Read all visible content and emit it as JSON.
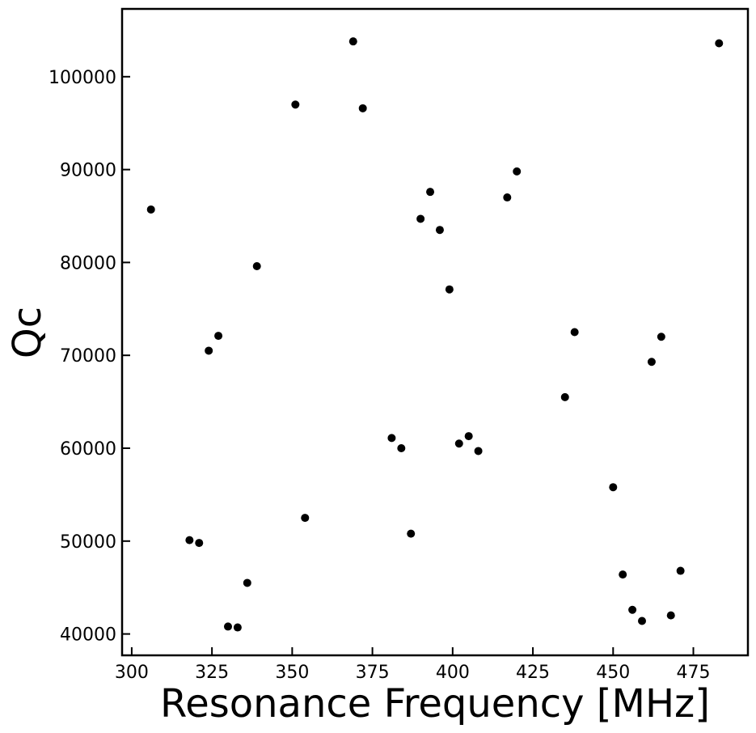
{
  "chart_data": {
    "type": "scatter",
    "title": "",
    "xlabel": "Resonance Frequency [MHz]",
    "ylabel": "Qc",
    "xlim": [
      297,
      492
    ],
    "ylim": [
      37700,
      107300
    ],
    "x_ticks": [
      300,
      325,
      350,
      375,
      400,
      425,
      450,
      475
    ],
    "y_ticks": [
      40000,
      50000,
      60000,
      70000,
      80000,
      90000,
      100000
    ],
    "grid": false,
    "legend": "none",
    "marker_color": "#000000",
    "points": [
      {
        "x": 306,
        "y": 85700
      },
      {
        "x": 318,
        "y": 50100
      },
      {
        "x": 321,
        "y": 49800
      },
      {
        "x": 324,
        "y": 70500
      },
      {
        "x": 327,
        "y": 72100
      },
      {
        "x": 330,
        "y": 40800
      },
      {
        "x": 333,
        "y": 40700
      },
      {
        "x": 336,
        "y": 45500
      },
      {
        "x": 339,
        "y": 79600
      },
      {
        "x": 351,
        "y": 97000
      },
      {
        "x": 354,
        "y": 52500
      },
      {
        "x": 369,
        "y": 103800
      },
      {
        "x": 372,
        "y": 96600
      },
      {
        "x": 381,
        "y": 61100
      },
      {
        "x": 384,
        "y": 60000
      },
      {
        "x": 387,
        "y": 50800
      },
      {
        "x": 390,
        "y": 84700
      },
      {
        "x": 393,
        "y": 87600
      },
      {
        "x": 396,
        "y": 83500
      },
      {
        "x": 399,
        "y": 77100
      },
      {
        "x": 402,
        "y": 60500
      },
      {
        "x": 405,
        "y": 61300
      },
      {
        "x": 408,
        "y": 59700
      },
      {
        "x": 417,
        "y": 87000
      },
      {
        "x": 420,
        "y": 89800
      },
      {
        "x": 435,
        "y": 65500
      },
      {
        "x": 438,
        "y": 72500
      },
      {
        "x": 450,
        "y": 55800
      },
      {
        "x": 453,
        "y": 46400
      },
      {
        "x": 456,
        "y": 42600
      },
      {
        "x": 459,
        "y": 41400
      },
      {
        "x": 462,
        "y": 69300
      },
      {
        "x": 465,
        "y": 72000
      },
      {
        "x": 468,
        "y": 42000
      },
      {
        "x": 471,
        "y": 46800
      },
      {
        "x": 483,
        "y": 103600
      }
    ]
  }
}
